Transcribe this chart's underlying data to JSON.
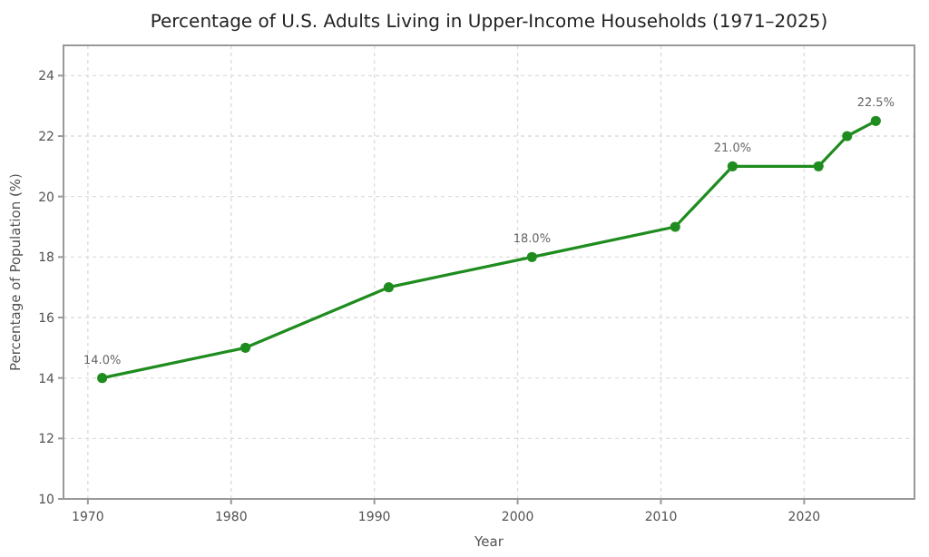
{
  "chart_data": {
    "type": "line",
    "title": "Percentage of U.S. Adults Living in Upper-Income Households (1971–2025)",
    "xlabel": "Year",
    "ylabel": "Percentage of Population (%)",
    "x": [
      1971,
      1981,
      1991,
      2001,
      2011,
      2015,
      2021,
      2023,
      2025
    ],
    "series": [
      {
        "color": "#1e8c1e",
        "values": [
          14,
          15,
          17,
          18,
          19,
          21,
          21,
          22,
          22.5
        ],
        "value_labels": [
          "14.0%",
          null,
          null,
          "18.0%",
          null,
          "21.0%",
          null,
          null,
          "22.5%"
        ]
      }
    ],
    "xlim": [
      1968.3,
      2027.7
    ],
    "ylim": [
      10,
      25
    ],
    "xticks": [
      1970,
      1980,
      1990,
      2000,
      2010,
      2020
    ],
    "yticks": [
      10,
      12,
      14,
      16,
      18,
      20,
      22,
      24
    ],
    "grid": true,
    "marker": "circle",
    "line_style": "solid"
  }
}
